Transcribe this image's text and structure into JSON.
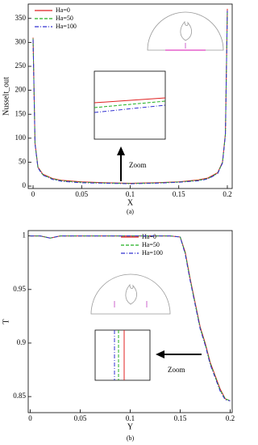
{
  "chart_data": [
    {
      "type": "line",
      "x_label": "X",
      "y_label": "Nusselt_out",
      "caption": "(a)",
      "annotation": "Zoom",
      "x": [
        0,
        0.002,
        0.005,
        0.01,
        0.02,
        0.03,
        0.05,
        0.075,
        0.1,
        0.125,
        0.15,
        0.17,
        0.18,
        0.19,
        0.195,
        0.198,
        0.2
      ],
      "series": [
        {
          "name": "Ha=0",
          "color": "#e02020",
          "linestyle": "solid",
          "values": [
            310,
            90,
            40,
            25,
            16,
            12,
            9,
            7,
            6,
            7,
            9,
            13,
            17,
            28,
            50,
            110,
            370
          ]
        },
        {
          "name": "Ha=50",
          "color": "#20b020",
          "linestyle": "dashed",
          "values": [
            308,
            89,
            39,
            24,
            15,
            11,
            8,
            6.5,
            5.5,
            6.5,
            8.5,
            12,
            16,
            27,
            49,
            108,
            368
          ]
        },
        {
          "name": "Ha=100",
          "color": "#3030d0",
          "linestyle": "dashdot",
          "values": [
            306,
            88,
            38,
            23,
            14,
            10,
            7,
            6,
            5,
            6,
            8,
            11,
            15,
            26,
            48,
            106,
            366
          ]
        }
      ],
      "xlim": [
        -0.005,
        0.205
      ],
      "ylim": [
        -5,
        380
      ],
      "xticks": [
        0,
        0.05,
        0.1,
        0.15,
        0.2
      ],
      "yticks": [
        0,
        50,
        100,
        150,
        200,
        250,
        300,
        350
      ],
      "legend": "upper left"
    },
    {
      "type": "line",
      "x_label": "Y",
      "y_label": "T",
      "caption": "(b)",
      "annotation": "Zoom",
      "x": [
        0,
        0.01,
        0.02,
        0.03,
        0.05,
        0.1,
        0.14,
        0.15,
        0.155,
        0.16,
        0.17,
        0.175,
        0.18,
        0.19,
        0.195,
        0.2
      ],
      "series": [
        {
          "name": "Ha=0",
          "color": "#e02020",
          "linestyle": "solid",
          "values": [
            1,
            1,
            0.998,
            1,
            1,
            1,
            1,
            0.999,
            0.985,
            0.96,
            0.915,
            0.9,
            0.882,
            0.857,
            0.848,
            0.846
          ]
        },
        {
          "name": "Ha=50",
          "color": "#20b020",
          "linestyle": "dashed",
          "values": [
            1,
            1,
            0.998,
            1,
            1,
            1,
            1,
            0.999,
            0.984,
            0.959,
            0.914,
            0.899,
            0.881,
            0.856,
            0.848,
            0.846
          ]
        },
        {
          "name": "Ha=100",
          "color": "#3030d0",
          "linestyle": "dashdot",
          "values": [
            1,
            1,
            0.998,
            1,
            1,
            1,
            1,
            0.999,
            0.983,
            0.958,
            0.913,
            0.898,
            0.88,
            0.855,
            0.847,
            0.846
          ]
        }
      ],
      "xlim": [
        -0.002,
        0.202
      ],
      "ylim": [
        0.835,
        1.005
      ],
      "xticks": [
        0,
        0.05,
        0.1,
        0.15,
        0.2
      ],
      "yticks": [
        0.85,
        0.9,
        0.95,
        1
      ],
      "legend": "upper center"
    }
  ]
}
